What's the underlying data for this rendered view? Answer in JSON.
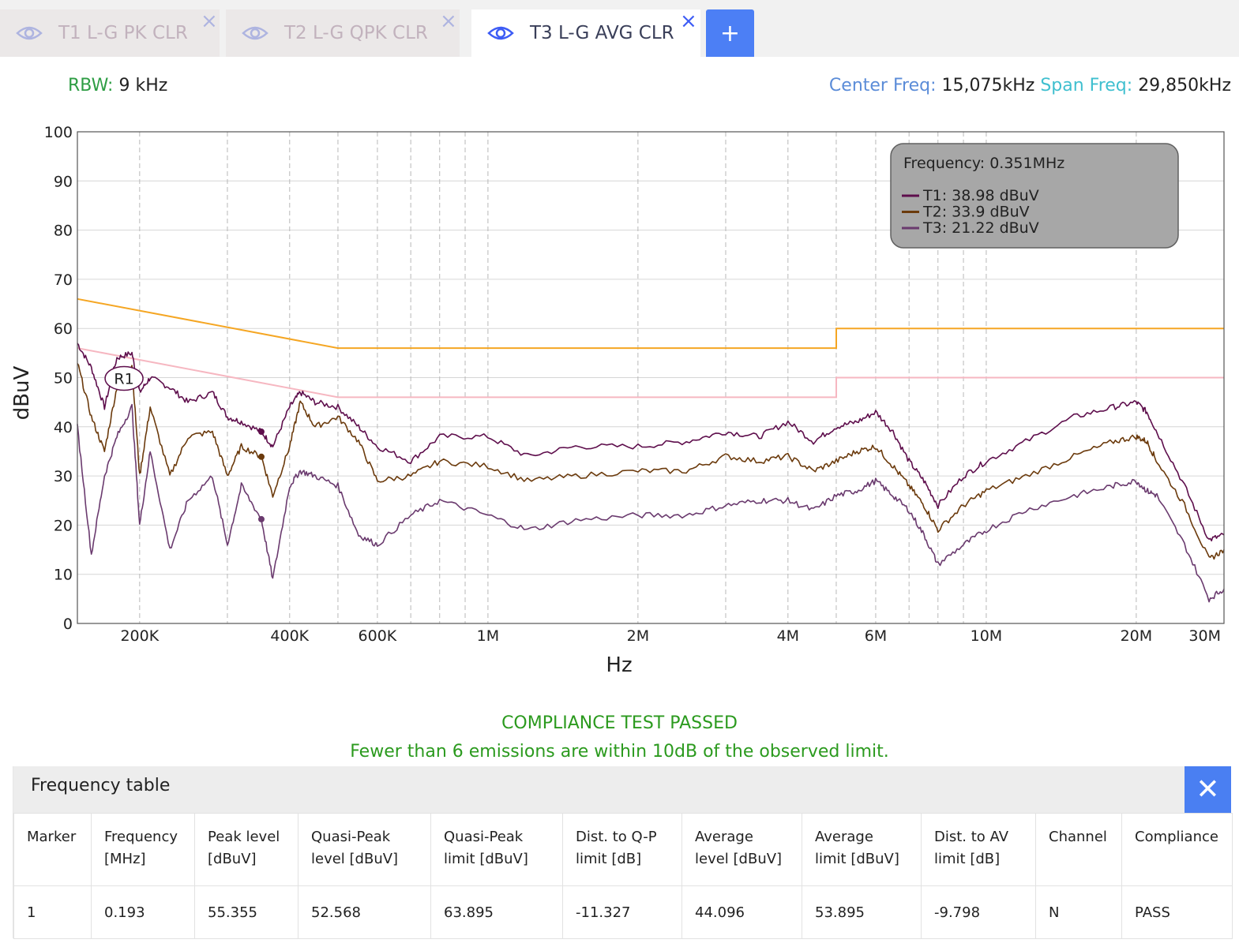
{
  "tabs": [
    {
      "label": "T1 L-G PK CLR",
      "active": false,
      "close": "×"
    },
    {
      "label": "T2 L-G QPK CLR",
      "active": false,
      "close": "×"
    },
    {
      "label": "T3 L-G AVG CLR",
      "active": true,
      "close": "×"
    }
  ],
  "add_tab_label": "+",
  "info": {
    "rbw_label": "RBW:",
    "rbw_value": "9 kHz",
    "center_label": "Center Freq:",
    "center_value": "15,075kHz",
    "span_label": "Span Freq:",
    "span_value": "29,850kHz"
  },
  "colors": {
    "t1": "#5e0e4c",
    "t2": "#6b3a0c",
    "t3": "#6a3a6e",
    "qp_limit": "#f5a623",
    "avg_limit": "#f6b7c1",
    "accent": "#4a7ff2",
    "pass_green": "#2b9a1e"
  },
  "chart_data": {
    "type": "line",
    "xlabel": "Hz",
    "ylabel": "dBuV",
    "x_scale": "log",
    "xlim_mhz": [
      0.15,
      30
    ],
    "ylim": [
      0,
      100
    ],
    "y_ticks": [
      0,
      10,
      20,
      30,
      40,
      50,
      60,
      70,
      80,
      90,
      100
    ],
    "x_tick_labels": [
      {
        "mhz": 0.2,
        "label": "200K"
      },
      {
        "mhz": 0.4,
        "label": "400K"
      },
      {
        "mhz": 0.6,
        "label": "600K"
      },
      {
        "mhz": 1,
        "label": "1M"
      },
      {
        "mhz": 2,
        "label": "2M"
      },
      {
        "mhz": 4,
        "label": "4M"
      },
      {
        "mhz": 6,
        "label": "6M"
      },
      {
        "mhz": 10,
        "label": "10M"
      },
      {
        "mhz": 20,
        "label": "20M"
      },
      {
        "mhz": 30,
        "label": "30M"
      }
    ],
    "grid": true,
    "limits": [
      {
        "name": "quasi-peak limit",
        "color_key": "qp_limit",
        "x_mhz": [
          0.15,
          0.5,
          0.5,
          5,
          5,
          30
        ],
        "y": [
          66,
          56,
          56,
          56,
          60,
          60
        ]
      },
      {
        "name": "average limit",
        "color_key": "avg_limit",
        "x_mhz": [
          0.15,
          0.5,
          0.5,
          5,
          5,
          30
        ],
        "y": [
          56,
          46,
          46,
          46,
          50,
          50
        ]
      }
    ],
    "series": [
      {
        "name": "T1",
        "color_key": "t1",
        "x_mhz": [
          0.15,
          0.16,
          0.17,
          0.18,
          0.193,
          0.2,
          0.21,
          0.23,
          0.25,
          0.28,
          0.3,
          0.32,
          0.351,
          0.37,
          0.4,
          0.42,
          0.45,
          0.5,
          0.55,
          0.6,
          0.7,
          0.8,
          1.0,
          1.2,
          1.5,
          2.0,
          2.5,
          3.0,
          3.5,
          4.0,
          4.5,
          5.0,
          5.5,
          6.0,
          6.5,
          7.0,
          7.5,
          8.0,
          9.0,
          10,
          12,
          15,
          18,
          20,
          21,
          22,
          25,
          28,
          30
        ],
        "y": [
          57,
          52,
          44,
          54,
          55,
          47,
          50,
          48,
          45,
          47,
          42,
          41,
          39,
          36,
          44,
          47,
          45,
          44,
          40,
          36,
          33,
          38,
          38,
          34,
          36,
          36,
          37,
          39,
          38,
          41,
          37,
          40,
          41,
          43,
          39,
          33,
          29,
          24,
          30,
          33,
          37,
          42,
          44,
          45,
          43,
          39,
          28,
          17,
          18
        ]
      },
      {
        "name": "T2",
        "color_key": "t2",
        "x_mhz": [
          0.15,
          0.16,
          0.17,
          0.18,
          0.193,
          0.2,
          0.21,
          0.23,
          0.25,
          0.28,
          0.3,
          0.32,
          0.351,
          0.37,
          0.4,
          0.42,
          0.45,
          0.5,
          0.55,
          0.6,
          0.7,
          0.8,
          1.0,
          1.2,
          1.5,
          2.0,
          2.5,
          3.0,
          3.5,
          4.0,
          4.5,
          5.0,
          5.5,
          6.0,
          6.5,
          7.0,
          7.5,
          8.0,
          9.0,
          10,
          12,
          15,
          18,
          20,
          21,
          22,
          25,
          28,
          30
        ],
        "y": [
          53,
          42,
          35,
          48,
          52.6,
          30,
          44,
          30,
          38,
          39,
          30,
          36,
          33.9,
          26,
          36,
          45,
          40,
          42,
          37,
          29,
          30,
          33,
          32,
          29,
          30,
          31,
          31,
          34,
          33,
          34,
          31,
          33,
          35,
          36,
          32,
          28,
          24,
          19,
          24,
          27,
          30,
          34,
          37,
          38,
          37,
          33,
          24,
          13,
          15
        ]
      },
      {
        "name": "T3",
        "color_key": "t3",
        "x_mhz": [
          0.15,
          0.16,
          0.17,
          0.18,
          0.193,
          0.2,
          0.21,
          0.23,
          0.25,
          0.28,
          0.3,
          0.32,
          0.351,
          0.37,
          0.4,
          0.42,
          0.45,
          0.5,
          0.55,
          0.6,
          0.7,
          0.8,
          1.0,
          1.2,
          1.5,
          2.0,
          2.5,
          3.0,
          3.5,
          4.0,
          4.5,
          5.0,
          5.5,
          6.0,
          6.5,
          7.0,
          7.5,
          8.0,
          9.0,
          10,
          12,
          15,
          18,
          20,
          21,
          22,
          25,
          28,
          30
        ],
        "y": [
          40,
          14,
          30,
          38,
          44.1,
          20,
          35,
          15,
          25,
          30,
          16,
          28,
          21.2,
          9,
          28,
          31,
          30,
          28,
          18,
          16,
          22,
          25,
          22,
          19,
          21,
          22,
          22,
          24,
          25,
          25,
          23,
          26,
          27,
          29,
          26,
          23,
          18,
          12,
          16,
          19,
          23,
          26,
          28,
          29,
          27,
          26,
          16,
          5,
          7
        ]
      }
    ],
    "marker": {
      "label": "R1",
      "x_mhz": 0.193,
      "y": 50
    },
    "cursor_points_x_mhz": 0.351,
    "tooltip": {
      "title": "Frequency: 0.351MHz",
      "rows": [
        {
          "color_key": "t1",
          "text": "T1: 38.98 dBuV"
        },
        {
          "color_key": "t2",
          "text": "T2: 33.9 dBuV"
        },
        {
          "color_key": "t3",
          "text": "T3: 21.22 dBuV"
        }
      ]
    }
  },
  "status": {
    "line1": "COMPLIANCE TEST PASSED",
    "line2": "Fewer than 6 emissions are within 10dB of the observed limit."
  },
  "freq_table": {
    "title": "Frequency table",
    "close": "✕",
    "headers": [
      "Marker",
      "Frequency [MHz]",
      "Peak level [dBuV]",
      "Quasi-Peak level [dBuV]",
      "Quasi-Peak limit [dBuV]",
      "Dist. to Q-P limit [dB]",
      "Average level [dBuV]",
      "Average limit [dBuV]",
      "Dist. to AV limit [dB]",
      "Channel",
      "Compliance"
    ],
    "rows": [
      [
        "1",
        "0.193",
        "55.355",
        "52.568",
        "63.895",
        "-11.327",
        "44.096",
        "53.895",
        "-9.798",
        "N",
        "PASS"
      ]
    ]
  }
}
